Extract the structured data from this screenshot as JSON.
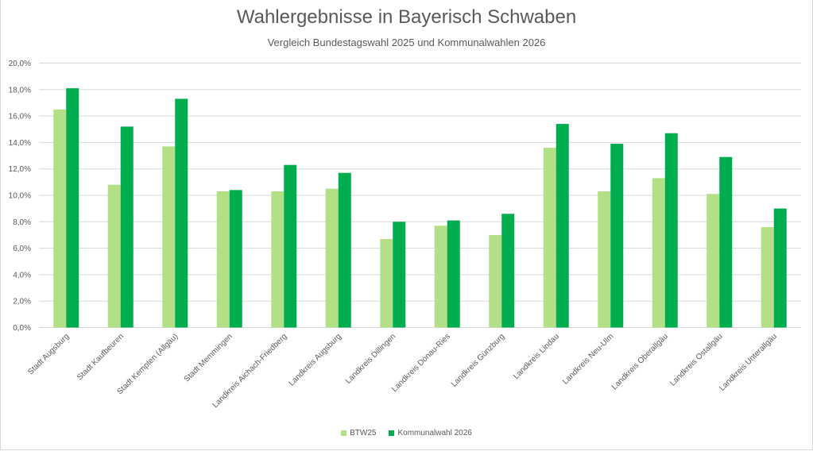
{
  "chart_data": {
    "type": "bar",
    "title": "Wahlergebnisse in Bayerisch Schwaben",
    "subtitle": "Vergleich Bundestagswahl 2025 und  Kommunalwahlen  2026",
    "xlabel": "",
    "ylabel": "",
    "ylim": [
      0,
      20
    ],
    "yticks": [
      "0,0%",
      "2,0%",
      "4,0%",
      "6,0%",
      "8,0%",
      "10,0%",
      "12,0%",
      "14,0%",
      "16,0%",
      "18,0%",
      "20,0%"
    ],
    "grid": true,
    "legend_position": "bottom",
    "categories": [
      "Stadt Augsburg",
      "Stadt Kaufbeuren",
      "Stadt Kempten (Allgäu)",
      "Stadt Memmingen",
      "Landkreis Aichach-Friedberg",
      "Landkreis Augsburg",
      "Landkreis Dillingen",
      "Landkreis Donau-Ries",
      "Landkreis Günzburg",
      "Landkreis Lindau",
      "Landkreis Neu-Ulm",
      "Landkreis Oberallgäu",
      "Landkreis Ostallgäu",
      "Landkreis Unterallgäu"
    ],
    "series": [
      {
        "name": "BTW25",
        "color": "#b3df87",
        "values": [
          16.5,
          10.8,
          13.7,
          10.3,
          10.3,
          10.5,
          6.7,
          7.7,
          7.0,
          13.6,
          10.3,
          11.3,
          10.1,
          7.6
        ]
      },
      {
        "name": "Kommunalwahl 2026",
        "color": "#00ad4e",
        "values": [
          18.1,
          15.2,
          17.3,
          10.4,
          12.3,
          11.7,
          8.0,
          8.1,
          8.6,
          15.4,
          13.9,
          14.7,
          12.9,
          9.0
        ]
      }
    ]
  }
}
